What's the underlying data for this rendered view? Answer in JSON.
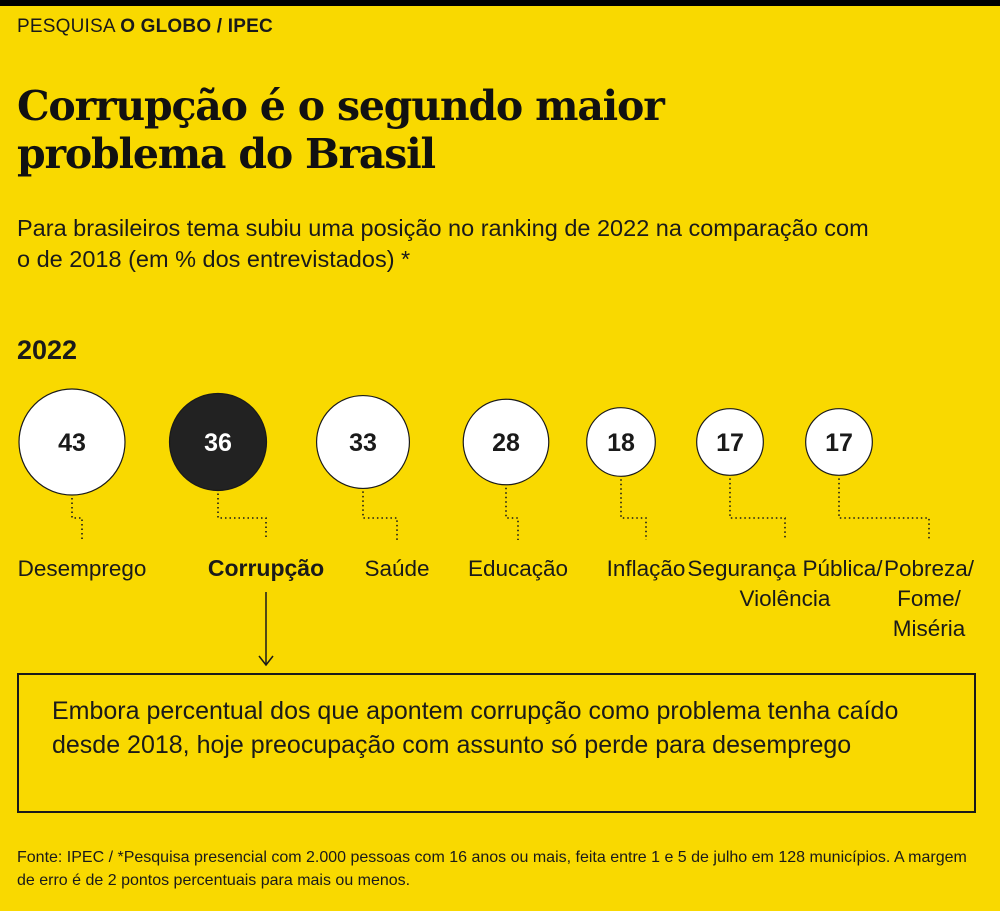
{
  "header": {
    "kicker_prefix": "PESQUISA",
    "kicker_brand": "O GLOBO / IPEC",
    "title": "Corrupção é o segundo maior problema do Brasil",
    "subtitle": "Para brasileiros tema subiu uma posição no ranking de 2022 na comparação com o de 2018  (em % dos entrevistados) *"
  },
  "chart_data": {
    "type": "bubble",
    "year_label": "2022",
    "unit": "% dos entrevistados",
    "categories": [
      "Desemprego",
      "Corrupção",
      "Saúde",
      "Educação",
      "Inflação",
      "Segurança Pública/ Violência",
      "Pobreza/ Fome/ Miséria"
    ],
    "values": [
      43,
      36,
      33,
      28,
      18,
      17,
      17
    ],
    "highlight": "Corrupção",
    "colors": {
      "background": "#f9d900",
      "bubble": "#ffffff",
      "highlight": "#222222",
      "ink": "#1a1a1a"
    }
  },
  "annotation": {
    "text": "Embora percentual dos que apontem corrupção como problema tenha caído desde 2018, hoje preocupação com assunto só perde para desemprego"
  },
  "footer": {
    "text": "Fonte: IPEC / *Pesquisa presencial com 2.000 pessoas com 16 anos ou mais, feita entre 1 e 5 de julho em 128 municípios. A margem de erro é de 2 pontos percentuais para mais ou menos."
  }
}
